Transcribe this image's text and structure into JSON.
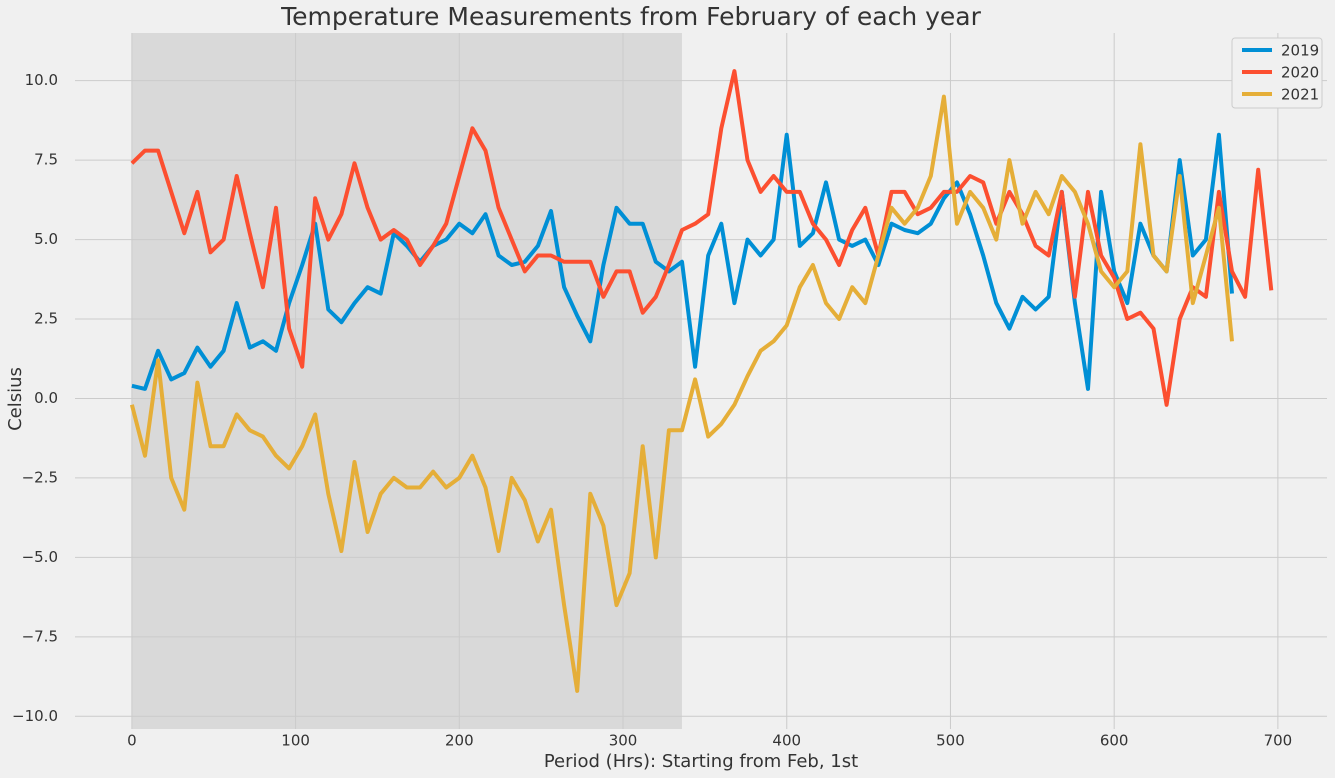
{
  "chart_data": {
    "type": "line",
    "title": "Temperature Measurements from February of each year",
    "x_label": "Period (Hrs): Starting from Feb, 1st",
    "y_label": "Celsius",
    "x": [
      0,
      8,
      16,
      24,
      32,
      40,
      48,
      56,
      64,
      72,
      80,
      88,
      96,
      104,
      112,
      120,
      128,
      136,
      144,
      152,
      160,
      168,
      176,
      184,
      192,
      200,
      208,
      216,
      224,
      232,
      240,
      248,
      256,
      264,
      272,
      280,
      288,
      296,
      304,
      312,
      320,
      328,
      336,
      344,
      352,
      360,
      368,
      376,
      384,
      392,
      400,
      408,
      416,
      424,
      432,
      440,
      448,
      456,
      464,
      472,
      480,
      488,
      496,
      504,
      512,
      520,
      528,
      536,
      544,
      552,
      560,
      568,
      576,
      584,
      592,
      600,
      608,
      616,
      624,
      632,
      640,
      648,
      656,
      664,
      672,
      680,
      688,
      696
    ],
    "series": [
      {
        "name": "2019",
        "color": "#008fd5",
        "values": [
          0.4,
          0.3,
          1.5,
          0.6,
          0.8,
          1.6,
          1.0,
          1.5,
          3.0,
          1.6,
          1.8,
          1.5,
          3.0,
          4.2,
          5.5,
          2.8,
          2.4,
          3.0,
          3.5,
          3.3,
          5.2,
          4.8,
          4.3,
          4.8,
          5.0,
          5.5,
          5.2,
          5.8,
          4.5,
          4.2,
          4.3,
          4.8,
          5.9,
          3.5,
          2.6,
          1.8,
          4.2,
          6.0,
          5.5,
          5.5,
          4.3,
          4.0,
          4.3,
          1.0,
          4.5,
          5.5,
          3.0,
          5.0,
          4.5,
          5.0,
          8.3,
          4.8,
          5.2,
          6.8,
          5.0,
          4.8,
          5.0,
          4.2,
          5.5,
          5.3,
          5.2,
          5.5,
          6.3,
          6.8,
          5.8,
          4.5,
          3.0,
          2.2,
          3.2,
          2.8,
          3.2,
          6.5,
          3.0,
          0.3,
          6.5,
          4.0,
          3.0,
          5.5,
          4.5,
          4.0,
          7.5,
          4.5,
          5.0,
          8.3,
          3.3,
          null,
          null,
          null
        ]
      },
      {
        "name": "2020",
        "color": "#fc4f30",
        "values": [
          7.4,
          7.8,
          7.8,
          6.5,
          5.2,
          6.5,
          4.6,
          5.0,
          7.0,
          5.2,
          3.5,
          6.0,
          2.2,
          1.0,
          6.3,
          5.0,
          5.8,
          7.4,
          6.0,
          5.0,
          5.3,
          5.0,
          4.2,
          4.8,
          5.5,
          7.0,
          8.5,
          7.8,
          6.0,
          5.0,
          4.0,
          4.5,
          4.5,
          4.3,
          4.3,
          4.3,
          3.2,
          4.0,
          4.0,
          2.7,
          3.2,
          4.2,
          5.3,
          5.5,
          5.8,
          8.5,
          10.3,
          7.5,
          6.5,
          7.0,
          6.5,
          6.5,
          5.5,
          5.0,
          4.2,
          5.3,
          6.0,
          4.5,
          6.5,
          6.5,
          5.8,
          6.0,
          6.5,
          6.5,
          7.0,
          6.8,
          5.5,
          6.5,
          5.8,
          4.8,
          4.5,
          6.5,
          3.2,
          6.5,
          4.5,
          3.8,
          2.5,
          2.7,
          2.2,
          -0.2,
          2.5,
          3.5,
          3.2,
          6.5,
          4.0,
          3.2,
          7.2,
          3.4
        ]
      },
      {
        "name": "2021",
        "color": "#e5ae38",
        "values": [
          -0.2,
          -1.8,
          1.2,
          -2.5,
          -3.5,
          0.5,
          -1.5,
          -1.5,
          -0.5,
          -1.0,
          -1.2,
          -1.8,
          -2.2,
          -1.5,
          -0.5,
          -3.0,
          -4.8,
          -2.0,
          -4.2,
          -3.0,
          -2.5,
          -2.8,
          -2.8,
          -2.3,
          -2.8,
          -2.5,
          -1.8,
          -2.8,
          -4.8,
          -2.5,
          -3.2,
          -4.5,
          -3.5,
          -6.5,
          -9.2,
          -3.0,
          -4.0,
          -6.5,
          -5.5,
          -1.5,
          -5.0,
          -1.0,
          -1.0,
          0.6,
          -1.2,
          -0.8,
          -0.2,
          0.7,
          1.5,
          1.8,
          2.3,
          3.5,
          4.2,
          3.0,
          2.5,
          3.5,
          3.0,
          4.5,
          6.0,
          5.5,
          6.0,
          7.0,
          9.5,
          5.5,
          6.5,
          6.0,
          5.0,
          7.5,
          5.5,
          6.5,
          5.8,
          7.0,
          6.5,
          5.5,
          4.0,
          3.5,
          4.0,
          8.0,
          4.5,
          4.0,
          7.0,
          3.0,
          4.5,
          6.0,
          1.8,
          null,
          null,
          null
        ]
      }
    ],
    "shaded_xrange": [
      0,
      336
    ],
    "xlim": [
      -34.75,
      730
    ],
    "ylim": [
      -10.4,
      11.5
    ],
    "xticks": [
      0,
      100,
      200,
      300,
      400,
      500,
      600,
      700
    ],
    "yticks": [
      {
        "value": -10,
        "label": "−10.0"
      },
      {
        "value": -7.5,
        "label": "−7.5"
      },
      {
        "value": -5,
        "label": "−5.0"
      },
      {
        "value": -2.5,
        "label": "−2.5"
      },
      {
        "value": 0,
        "label": "0.0"
      },
      2.5,
      {
        "value": 5,
        "label": "5.0"
      },
      {
        "value": 7.5,
        "label": "7.5"
      },
      {
        "value": 10,
        "label": "10.0"
      }
    ],
    "grid": true,
    "legend": "upper-right"
  }
}
